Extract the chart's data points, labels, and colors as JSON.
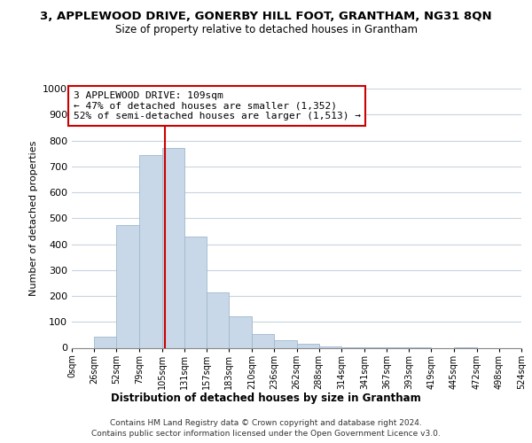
{
  "title": "3, APPLEWOOD DRIVE, GONERBY HILL FOOT, GRANTHAM, NG31 8QN",
  "subtitle": "Size of property relative to detached houses in Grantham",
  "xlabel": "Distribution of detached houses by size in Grantham",
  "ylabel": "Number of detached properties",
  "bar_edges": [
    0,
    26,
    52,
    79,
    105,
    131,
    157,
    183,
    210,
    236,
    262,
    288,
    314,
    341,
    367,
    393,
    419,
    445,
    472,
    498,
    524
  ],
  "bar_heights": [
    0,
    42,
    475,
    745,
    770,
    428,
    215,
    122,
    52,
    28,
    15,
    5,
    2,
    1,
    1,
    1,
    0,
    1,
    0,
    0
  ],
  "bar_color": "#c8d8e8",
  "bar_edge_color": "#a0b8cc",
  "property_line_x": 109,
  "property_line_color": "#cc0000",
  "ylim": [
    0,
    1000
  ],
  "yticks": [
    0,
    100,
    200,
    300,
    400,
    500,
    600,
    700,
    800,
    900,
    1000
  ],
  "annotation_text": "3 APPLEWOOD DRIVE: 109sqm\n← 47% of detached houses are smaller (1,352)\n52% of semi-detached houses are larger (1,513) →",
  "annotation_box_color": "#ffffff",
  "annotation_box_edge": "#cc0000",
  "footer_line1": "Contains HM Land Registry data © Crown copyright and database right 2024.",
  "footer_line2": "Contains public sector information licensed under the Open Government Licence v3.0.",
  "background_color": "#ffffff",
  "grid_color": "#c8d4e0"
}
